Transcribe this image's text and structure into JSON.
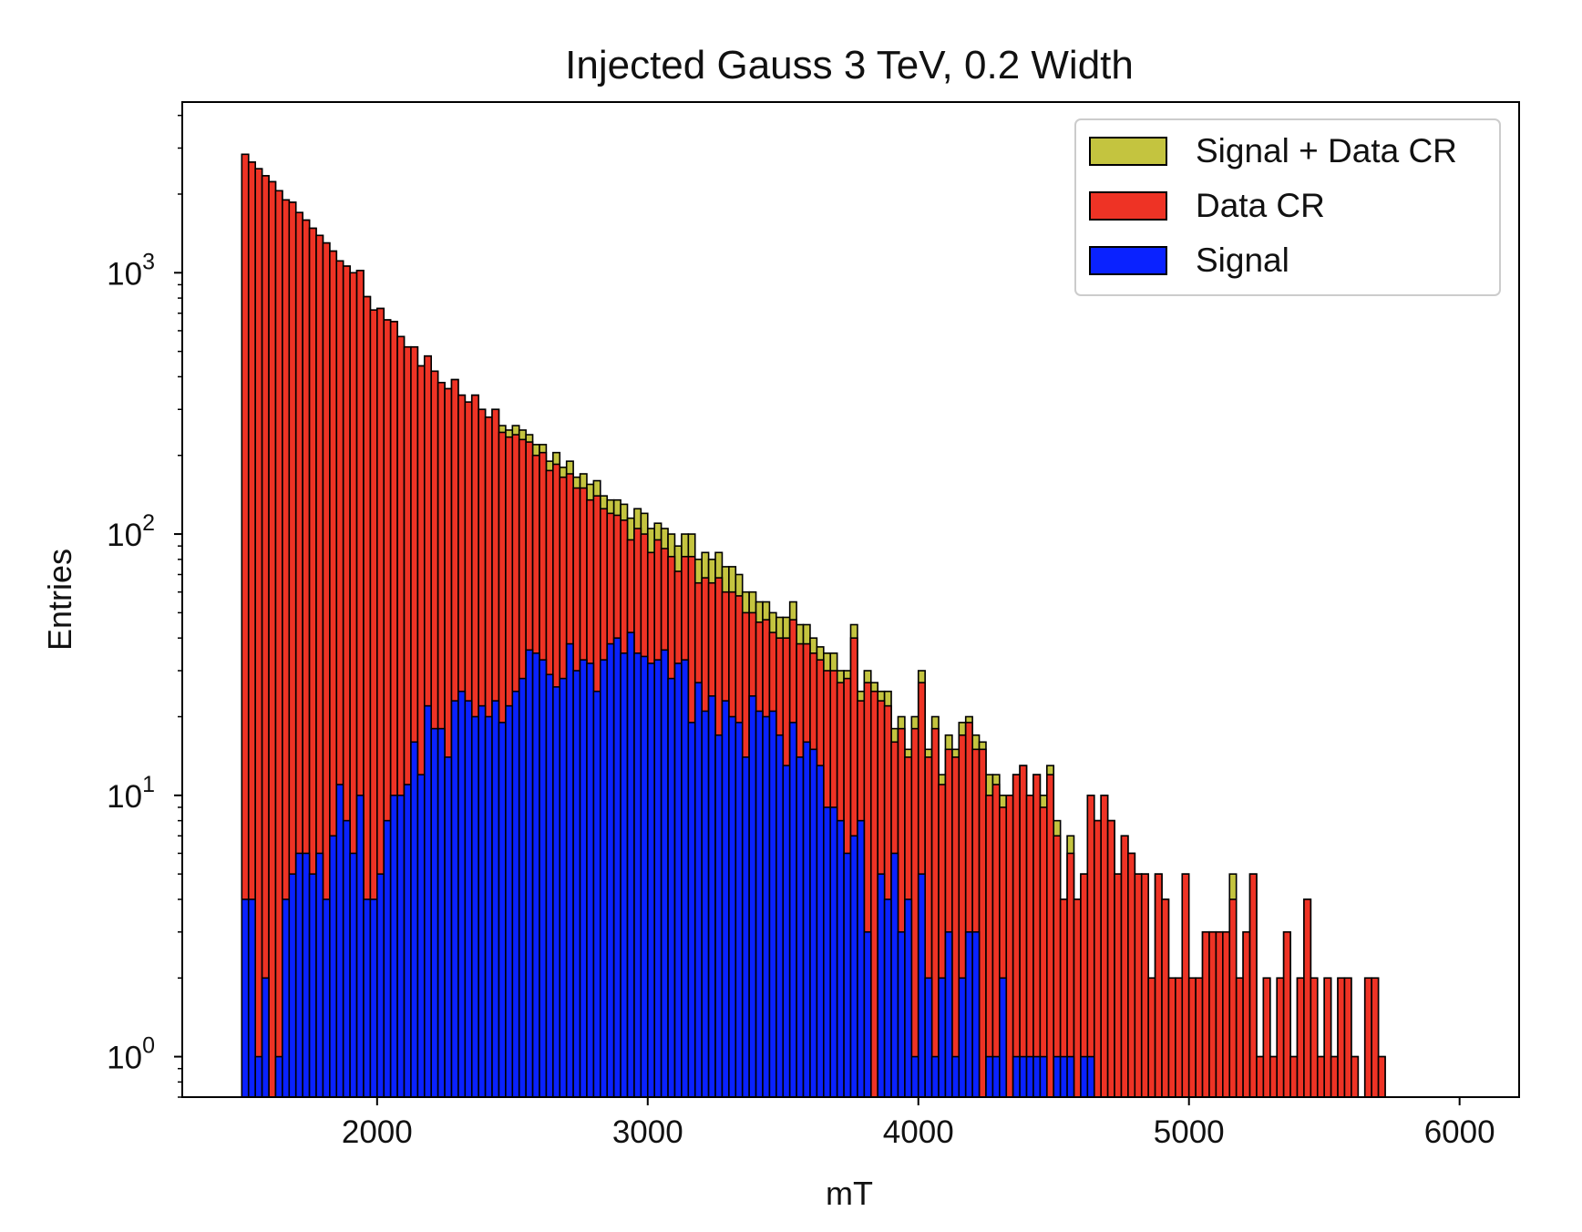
{
  "chart_data": {
    "type": "bar",
    "title": "Injected Gauss 3 TeV, 0.2 Width",
    "xlabel": "mT",
    "ylabel": "Entries",
    "y_scale": "log",
    "x_range": [
      1280,
      6220
    ],
    "y_range": [
      0.7,
      4500
    ],
    "bin_start": 1500,
    "bin_width": 25,
    "x_ticks": [
      {
        "value": 2000,
        "label": "2000"
      },
      {
        "value": 3000,
        "label": "3000"
      },
      {
        "value": 4000,
        "label": "4000"
      },
      {
        "value": 5000,
        "label": "5000"
      },
      {
        "value": 6000,
        "label": "6000"
      }
    ],
    "y_ticks": [
      {
        "value": 1,
        "base": "10",
        "exp": "0"
      },
      {
        "value": 10,
        "base": "10",
        "exp": "1"
      },
      {
        "value": 100,
        "base": "10",
        "exp": "2"
      },
      {
        "value": 1000,
        "base": "10",
        "exp": "3"
      }
    ],
    "legend_position": "top-right",
    "grid": false,
    "series": [
      {
        "name": "Signal + Data CR",
        "color": "#c4c43f",
        "values": [
          2840,
          2650,
          2500,
          2350,
          2230,
          2060,
          1900,
          1860,
          1700,
          1590,
          1480,
          1390,
          1300,
          1210,
          1110,
          1060,
          1000,
          1020,
          810,
          720,
          730,
          660,
          650,
          570,
          520,
          520,
          440,
          480,
          420,
          380,
          360,
          390,
          340,
          320,
          340,
          300,
          280,
          300,
          260,
          250,
          260,
          250,
          240,
          220,
          220,
          190,
          205,
          180,
          190,
          165,
          170,
          155,
          160,
          140,
          135,
          135,
          130,
          115,
          125,
          120,
          105,
          110,
          105,
          100,
          90,
          100,
          100,
          80,
          85,
          80,
          85,
          75,
          75,
          70,
          60,
          60,
          55,
          55,
          50,
          48,
          48,
          55,
          45,
          45,
          40,
          37,
          35,
          35,
          30,
          30,
          45,
          25,
          30,
          27,
          25,
          25,
          18,
          20,
          15,
          20,
          30,
          15,
          20,
          12,
          17,
          15,
          19,
          20,
          17,
          16,
          12,
          12,
          10,
          10,
          12,
          13,
          10,
          12,
          10,
          13,
          8,
          4,
          7,
          4,
          5,
          10,
          8,
          10,
          8,
          5,
          7,
          6,
          5,
          5,
          2,
          5,
          4,
          2,
          2,
          5,
          2,
          2,
          3,
          3,
          3,
          3,
          5,
          2,
          3,
          5,
          1,
          2,
          1,
          2,
          3,
          1,
          2,
          4,
          2,
          1,
          2,
          1,
          2,
          2,
          1,
          0,
          2,
          2,
          1
        ]
      },
      {
        "name": "Data CR",
        "color": "#ee3325",
        "values": [
          2840,
          2650,
          2500,
          2350,
          2230,
          2060,
          1900,
          1860,
          1700,
          1590,
          1480,
          1390,
          1300,
          1210,
          1110,
          1060,
          1000,
          1020,
          810,
          720,
          730,
          660,
          650,
          570,
          520,
          520,
          440,
          480,
          420,
          380,
          360,
          390,
          340,
          320,
          340,
          300,
          280,
          300,
          245,
          235,
          240,
          230,
          225,
          200,
          205,
          175,
          185,
          165,
          170,
          150,
          150,
          135,
          140,
          125,
          120,
          118,
          113,
          95,
          105,
          100,
          85,
          95,
          88,
          82,
          72,
          82,
          82,
          65,
          68,
          65,
          68,
          60,
          60,
          58,
          50,
          50,
          46,
          47,
          42,
          40,
          40,
          47,
          38,
          38,
          35,
          33,
          30,
          30,
          27,
          28,
          40,
          23,
          27,
          25,
          23,
          22,
          16,
          18,
          14,
          18,
          27,
          14,
          18,
          11,
          15,
          14,
          17,
          19,
          15,
          15,
          10,
          11,
          9,
          10,
          12,
          13,
          10,
          12,
          9,
          12,
          7,
          4,
          6,
          4,
          5,
          10,
          8,
          10,
          8,
          5,
          7,
          6,
          5,
          5,
          2,
          5,
          4,
          2,
          2,
          5,
          2,
          2,
          3,
          3,
          3,
          3,
          4,
          2,
          3,
          5,
          1,
          2,
          1,
          2,
          3,
          1,
          2,
          4,
          2,
          1,
          2,
          1,
          2,
          2,
          1,
          0,
          2,
          2,
          1
        ]
      },
      {
        "name": "Signal",
        "color": "#0a22ff",
        "values": [
          4,
          4,
          1,
          2,
          0,
          1,
          4,
          5,
          6,
          6,
          5,
          6,
          4,
          7,
          11,
          8,
          6,
          10,
          4,
          4,
          5,
          8,
          10,
          10,
          11,
          16,
          12,
          22,
          18,
          18,
          14,
          23,
          25,
          23,
          20,
          22,
          20,
          23,
          19,
          22,
          25,
          28,
          36,
          35,
          33,
          29,
          26,
          28,
          38,
          30,
          33,
          32,
          25,
          33,
          38,
          40,
          35,
          42,
          35,
          34,
          32,
          33,
          36,
          28,
          32,
          33,
          19,
          27,
          21,
          24,
          17,
          23,
          20,
          19,
          14,
          24,
          21,
          20,
          21,
          17,
          13,
          19,
          14,
          16,
          15,
          13,
          9,
          9,
          8,
          6,
          7,
          8,
          3,
          0,
          5,
          4,
          6,
          3,
          4,
          1,
          5,
          2,
          1,
          2,
          3,
          1,
          2,
          3,
          3,
          0,
          1,
          1,
          2,
          0,
          1,
          1,
          1,
          1,
          1,
          0,
          1,
          1,
          1,
          0,
          1,
          1,
          0,
          0,
          0,
          0,
          0,
          0,
          0,
          0,
          0,
          0,
          0,
          0,
          0,
          0,
          0,
          0,
          0,
          0,
          0,
          0,
          0,
          0,
          0,
          0,
          0,
          0,
          0,
          0,
          0,
          0,
          0,
          0,
          0,
          0,
          0,
          0,
          0,
          0,
          0,
          0,
          0,
          0,
          0,
          0,
          0,
          0,
          0,
          0,
          0,
          0,
          0,
          0,
          0,
          0,
          0,
          0,
          0
        ]
      }
    ]
  }
}
